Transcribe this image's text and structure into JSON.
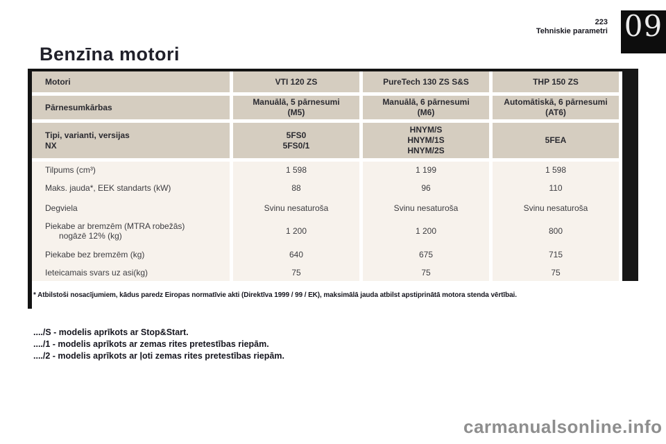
{
  "header": {
    "chapter_number": "09",
    "page_number": "223",
    "section_name": "Tehniskie parametri"
  },
  "title": "Benzīna motori",
  "table": {
    "header_rows": [
      {
        "label": "Motori",
        "values": [
          "VTI 120 ZS",
          "PureTech 130 ZS S&S",
          "THP 150 ZS"
        ]
      },
      {
        "label": "Pārnesumkārbas",
        "values": [
          "Manuālā, 5 pārnesumi\n(M5)",
          "Manuālā, 6 pārnesumi\n(M6)",
          "Automātiskā, 6 pārnesumi\n(AT6)"
        ]
      },
      {
        "label": "Tipi, varianti, versijas\nNX",
        "values": [
          "5FS0\n5FS0/1",
          "HNYM/S\nHNYM/1S\nHNYM/2S",
          "5FEA"
        ]
      }
    ],
    "body_rows": [
      {
        "label": "Tilpums (cm³)",
        "values": [
          "1 598",
          "1 199",
          "1 598"
        ]
      },
      {
        "label": "Maks. jauda*, EEK standarts (kW)",
        "values": [
          "88",
          "96",
          "110"
        ]
      },
      {
        "label": "Degviela",
        "values": [
          "Svinu nesaturoša",
          "Svinu nesaturoša",
          "Svinu nesaturoša"
        ]
      },
      {
        "label": "Piekabe ar bremzēm (MTRA robežās)\n      nogāzē 12% (kg)",
        "values": [
          "1 200",
          "1 200",
          "800"
        ]
      },
      {
        "label": "Piekabe bez bremzēm (kg)",
        "values": [
          "640",
          "675",
          "715"
        ]
      },
      {
        "label": "Ieteicamais svars uz asi(kg)",
        "values": [
          "75",
          "75",
          "75"
        ]
      }
    ]
  },
  "footnote": "* Atbilstoši nosacījumiem, kādus paredz Eiropas normatīvie akti (Direktīva 1999 / 99 / EK), maksimālā jauda atbilst apstiprinātā motora stenda vērtībai.",
  "legend": {
    "line1": "..../S - modelis aprīkots ar Stop&Start.",
    "line2": "..../1 - modelis aprīkots ar zemas rites pretestības riepām.",
    "line3": "..../2 - modelis aprīkots ar ļoti zemas rites pretestības riepām."
  },
  "watermark": "carmanualsonline.info",
  "colors": {
    "header_cell": "#d5cdc0",
    "body_cell": "#f7f2ec",
    "chapter_tab_bg": "#0d0d0d",
    "rule_dark": "#131313",
    "watermark_gray": "#8e8e8e"
  }
}
